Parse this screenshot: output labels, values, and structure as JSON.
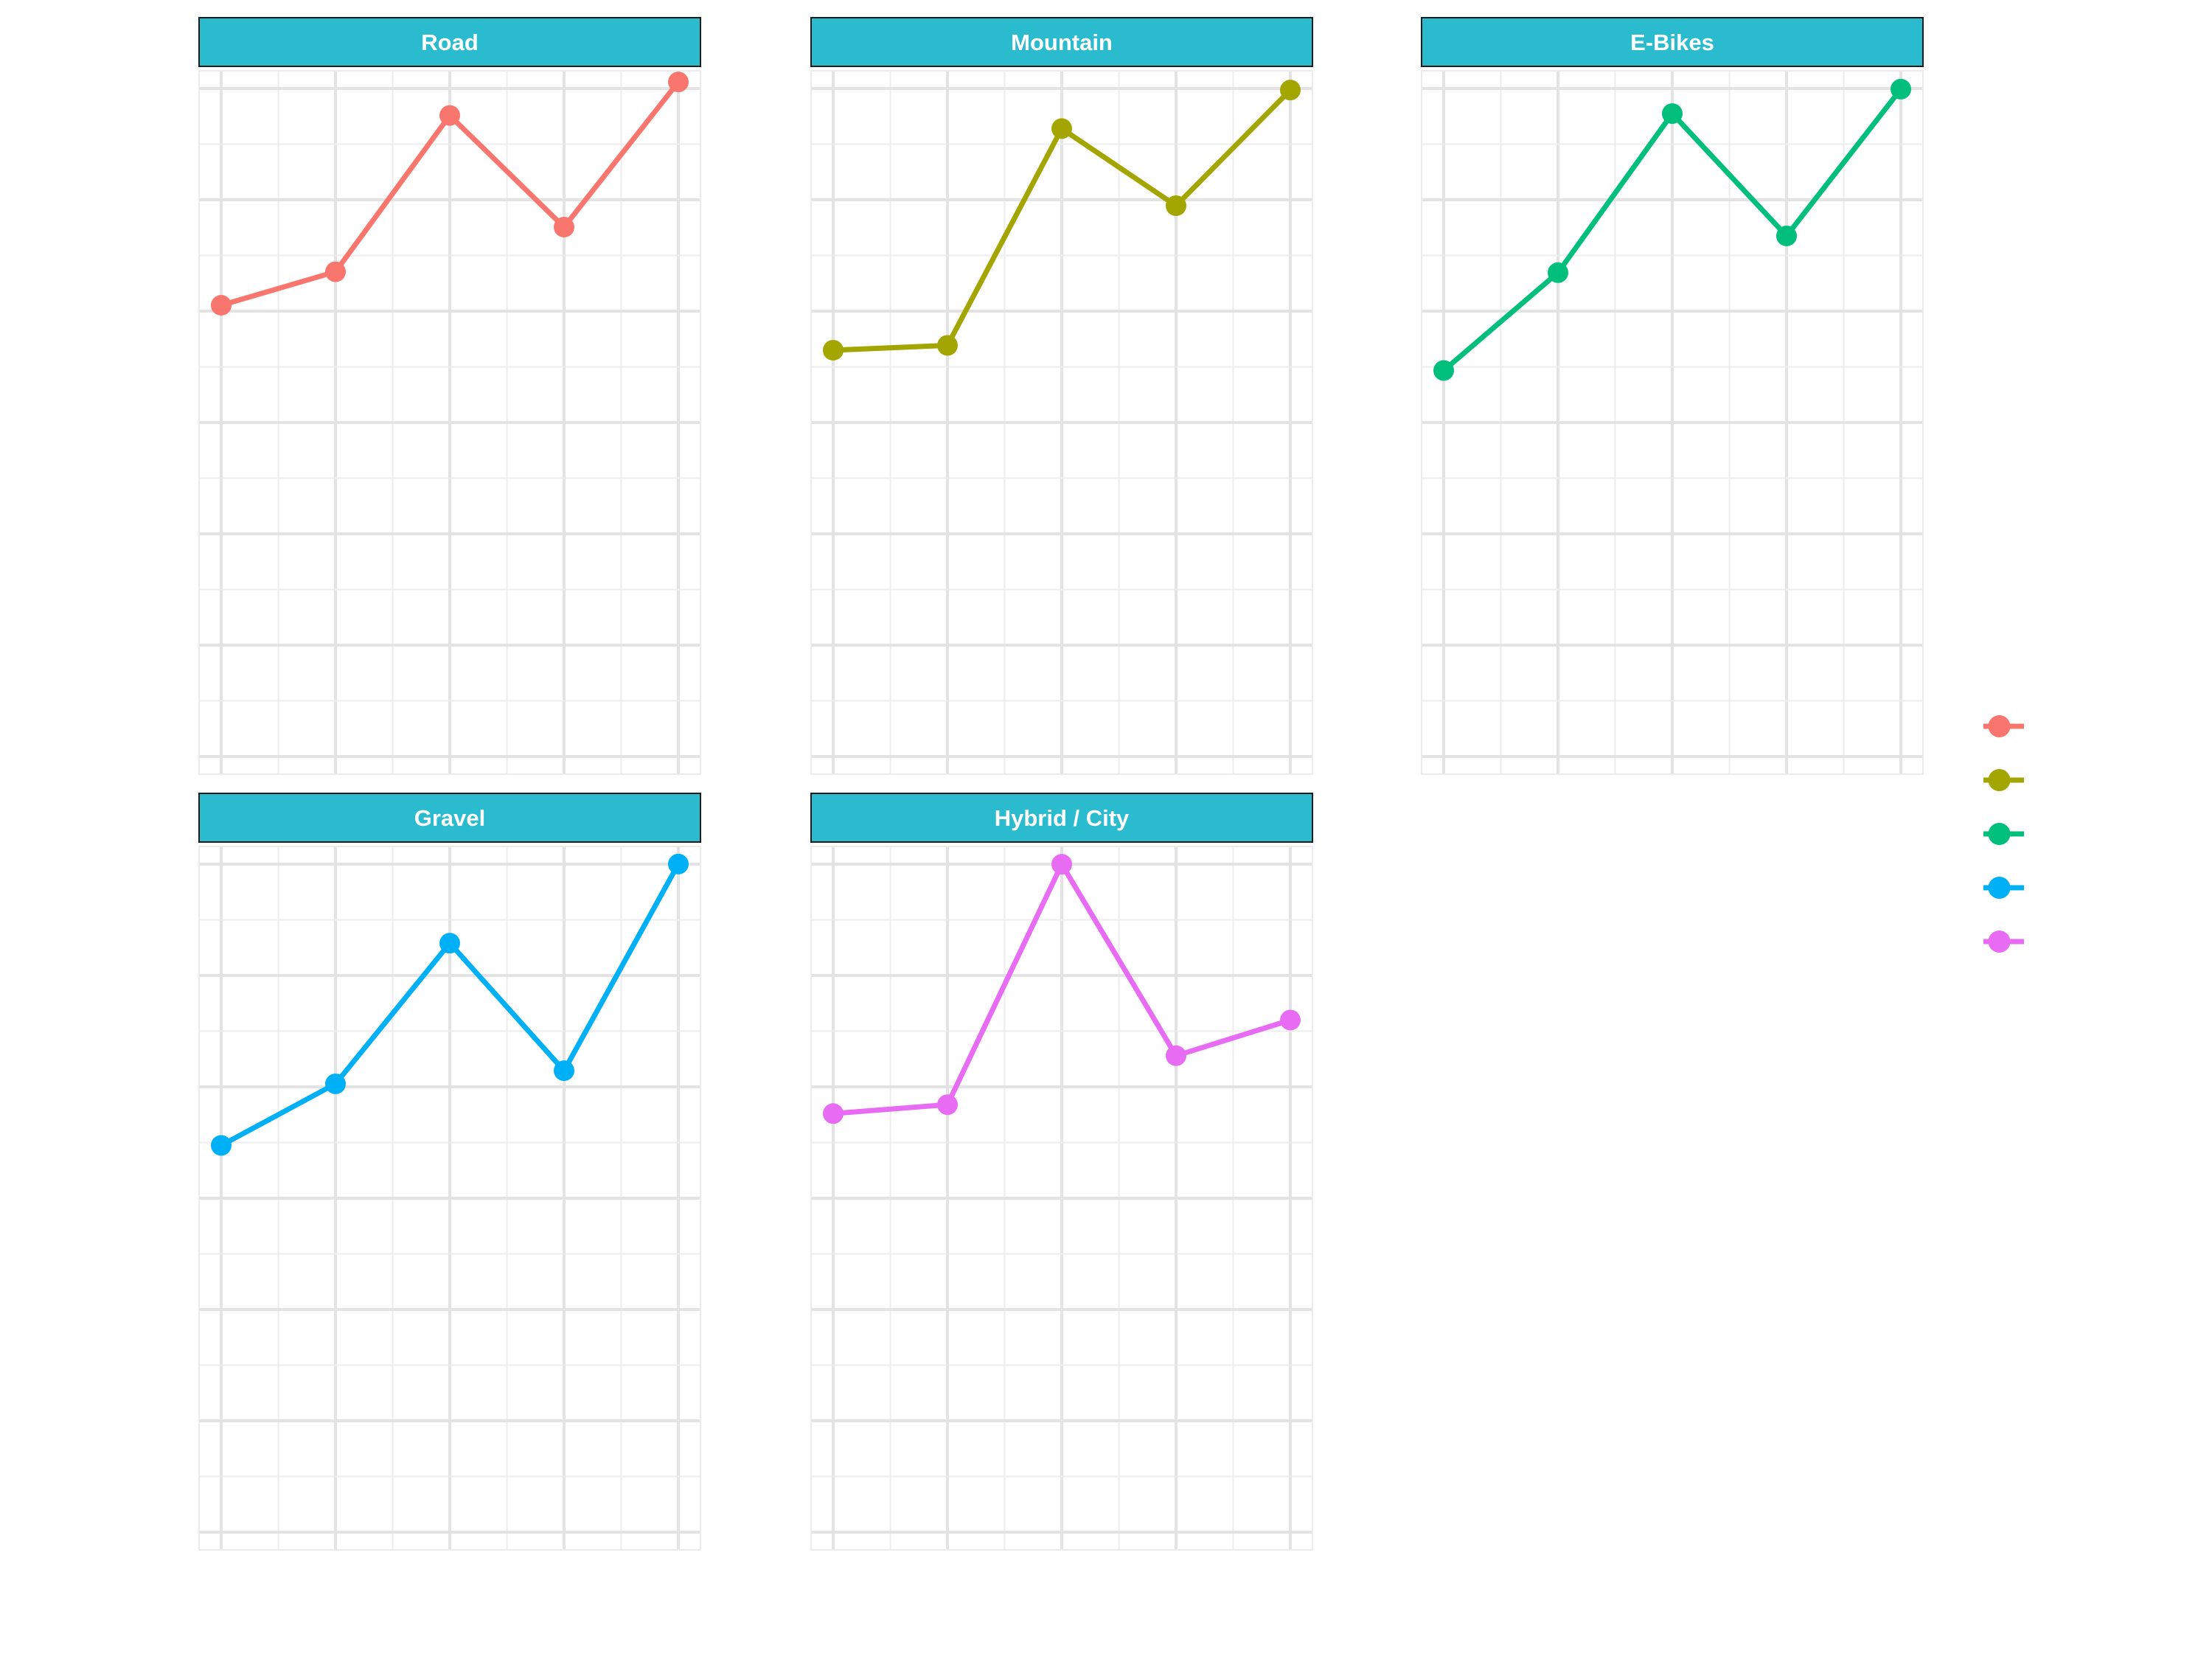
{
  "chart_data": {
    "type": "line",
    "layout": "faceted-small-multiples",
    "shared_axes": false,
    "axis_text_visible": false,
    "grid": true,
    "legend_placement": "right",
    "x": [
      1,
      2,
      3,
      4,
      5
    ],
    "facets": [
      {
        "label": "Road",
        "color": "#F8766D",
        "values": [
          62,
          65,
          79,
          69,
          82
        ],
        "ylim": [
          20,
          83
        ]
      },
      {
        "label": "Mountain",
        "color": "#A3A500",
        "values": [
          44,
          44.5,
          67,
          59,
          71
        ],
        "ylim": [
          0,
          73
        ]
      },
      {
        "label": "E-Bikes",
        "color": "#00BF7D",
        "values": [
          41,
          49,
          62,
          52,
          64
        ],
        "ylim": [
          8,
          65.5
        ]
      },
      {
        "label": "Gravel",
        "color": "#00B0F6",
        "values": [
          26,
          33,
          49,
          34.5,
          58
        ],
        "ylim": [
          -20,
          60
        ]
      },
      {
        "label": "Hybrid / City",
        "color": "#E76BF3",
        "values": [
          41,
          42,
          69,
          47.5,
          51.5
        ],
        "ylim": [
          -8,
          71
        ]
      }
    ],
    "legend": [
      {
        "label": "",
        "color": "#F8766D"
      },
      {
        "label": "",
        "color": "#A3A500"
      },
      {
        "label": "",
        "color": "#00BF7D"
      },
      {
        "label": "",
        "color": "#00B0F6"
      },
      {
        "label": "",
        "color": "#E76BF3"
      }
    ]
  },
  "style": {
    "strip_fill": "#2ABBCE",
    "strip_text_color": "#FFFFFF",
    "grid_major": "#E3E3E3",
    "grid_minor": "#EDEDED",
    "background": "#FFFFFF"
  }
}
